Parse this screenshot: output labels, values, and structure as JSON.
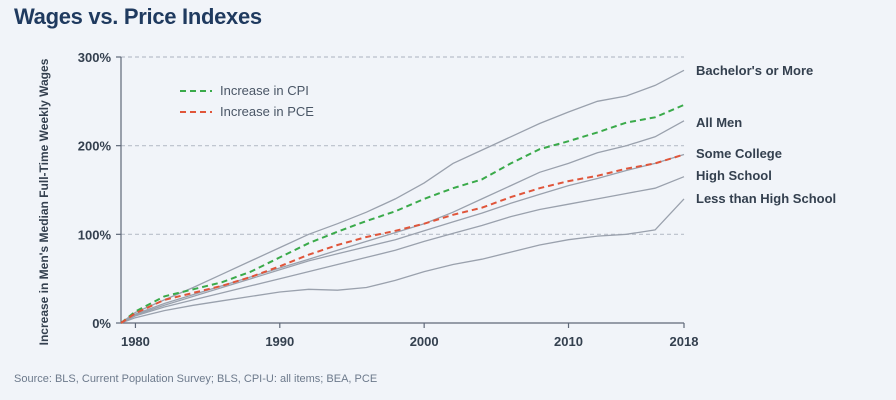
{
  "title": "Wages vs. Price Indexes",
  "source": "Source: BLS, Current Population Survey; BLS, CPI-U: all items; BEA, PCE",
  "colors": {
    "cpi": "#3aaa4a",
    "pce": "#e0553a",
    "wage_lines": "#9aa1ad",
    "title": "#1f3a5f"
  },
  "chart_data": {
    "type": "line",
    "ylabel": "Increase in Men's Median Full-Time Weekly Wages",
    "xlabel": "",
    "xlim": [
      1979,
      2018
    ],
    "ylim": [
      0,
      300
    ],
    "x_ticks": [
      1980,
      1990,
      2000,
      2010,
      2018
    ],
    "y_ticks": [
      0,
      100,
      200,
      300
    ],
    "y_tick_labels": [
      "0%",
      "100%",
      "200%",
      "300%"
    ],
    "grid": true,
    "legend": [
      "Increase in CPI",
      "Increase in PCE"
    ],
    "legend_position": "top-left",
    "series": [
      {
        "name": "Bachelor's or More",
        "style": "solid",
        "x": [
          1979,
          1980,
          1982,
          1984,
          1986,
          1988,
          1990,
          1992,
          1994,
          1996,
          1998,
          2000,
          2002,
          2004,
          2006,
          2008,
          2010,
          2012,
          2014,
          2016,
          2018
        ],
        "y": [
          0,
          12,
          26,
          40,
          55,
          70,
          85,
          100,
          112,
          125,
          140,
          158,
          180,
          195,
          210,
          225,
          238,
          250,
          256,
          268,
          285
        ]
      },
      {
        "name": "All Men",
        "style": "solid",
        "x": [
          1979,
          1980,
          1982,
          1984,
          1986,
          1988,
          1990,
          1992,
          1994,
          1996,
          1998,
          2000,
          2002,
          2004,
          2006,
          2008,
          2010,
          2012,
          2014,
          2016,
          2018
        ],
        "y": [
          0,
          10,
          22,
          32,
          42,
          52,
          62,
          72,
          82,
          92,
          102,
          112,
          125,
          140,
          155,
          170,
          180,
          192,
          200,
          210,
          228
        ]
      },
      {
        "name": "Some College",
        "style": "solid",
        "x": [
          1979,
          1980,
          1982,
          1984,
          1986,
          1988,
          1990,
          1992,
          1994,
          1996,
          1998,
          2000,
          2002,
          2004,
          2006,
          2008,
          2010,
          2012,
          2014,
          2016,
          2018
        ],
        "y": [
          0,
          9,
          20,
          30,
          40,
          50,
          60,
          70,
          78,
          86,
          94,
          104,
          114,
          124,
          135,
          145,
          155,
          163,
          172,
          180,
          190
        ]
      },
      {
        "name": "High School",
        "style": "solid",
        "x": [
          1979,
          1980,
          1982,
          1984,
          1986,
          1988,
          1990,
          1992,
          1994,
          1996,
          1998,
          2000,
          2002,
          2004,
          2006,
          2008,
          2010,
          2012,
          2014,
          2016,
          2018
        ],
        "y": [
          0,
          8,
          18,
          26,
          34,
          42,
          50,
          58,
          66,
          74,
          82,
          92,
          101,
          110,
          120,
          128,
          134,
          140,
          146,
          152,
          165
        ]
      },
      {
        "name": "Less than High School",
        "style": "solid",
        "x": [
          1979,
          1980,
          1982,
          1984,
          1986,
          1988,
          1990,
          1992,
          1994,
          1996,
          1998,
          2000,
          2002,
          2004,
          2006,
          2008,
          2010,
          2012,
          2014,
          2016,
          2018
        ],
        "y": [
          0,
          6,
          14,
          20,
          25,
          30,
          35,
          38,
          37,
          40,
          48,
          58,
          66,
          72,
          80,
          88,
          94,
          98,
          100,
          105,
          140
        ]
      },
      {
        "name": "Increase in CPI",
        "style": "dashed",
        "x": [
          1979,
          1980,
          1982,
          1984,
          1986,
          1988,
          1990,
          1992,
          1994,
          1996,
          1998,
          2000,
          2002,
          2004,
          2006,
          2008,
          2010,
          2012,
          2014,
          2016,
          2018
        ],
        "y": [
          0,
          13,
          30,
          38,
          46,
          58,
          74,
          90,
          103,
          115,
          126,
          140,
          152,
          162,
          180,
          196,
          205,
          215,
          226,
          232,
          246
        ]
      },
      {
        "name": "Increase in PCE",
        "style": "dashed",
        "x": [
          1979,
          1980,
          1982,
          1984,
          1986,
          1988,
          1990,
          1992,
          1994,
          1996,
          1998,
          2000,
          2002,
          2004,
          2006,
          2008,
          2010,
          2012,
          2014,
          2016,
          2018
        ],
        "y": [
          0,
          11,
          26,
          34,
          42,
          52,
          64,
          77,
          88,
          97,
          104,
          112,
          122,
          130,
          142,
          152,
          160,
          166,
          174,
          180,
          190
        ]
      }
    ],
    "annotations": [
      "Bachelor's or More",
      "All Men",
      "Some College",
      "High School",
      "Less than High School"
    ]
  }
}
